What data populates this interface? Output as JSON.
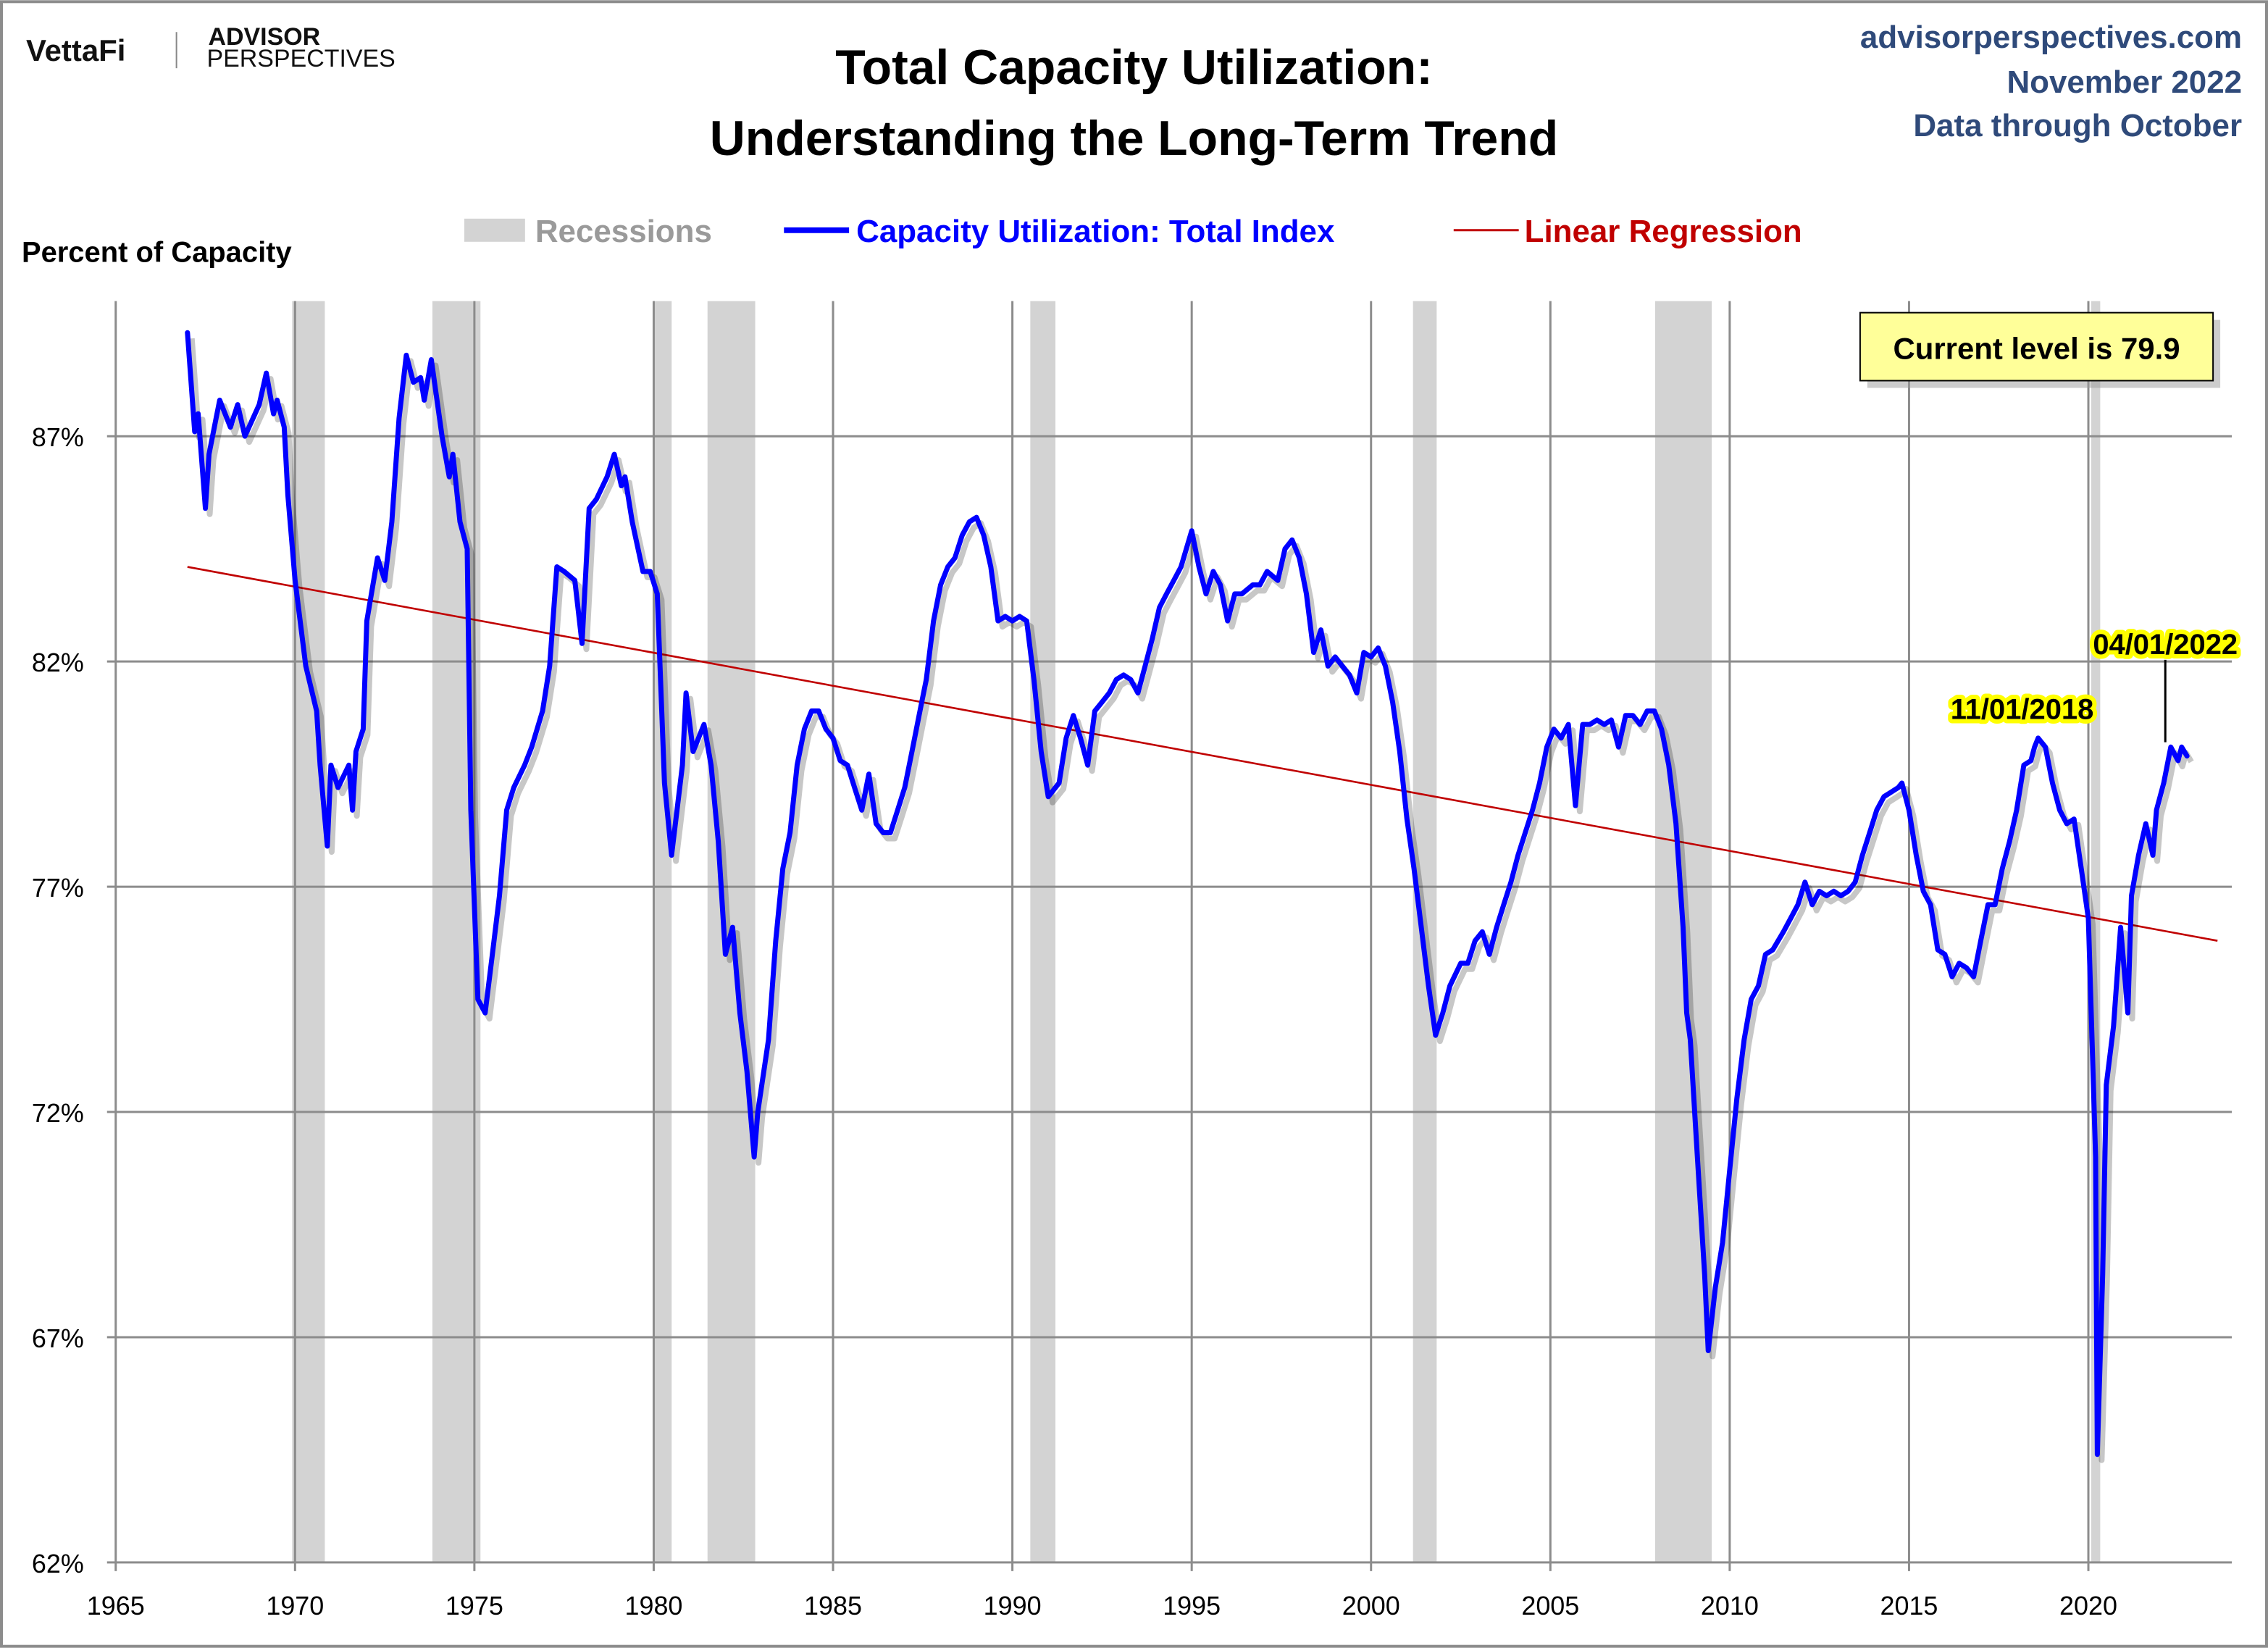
{
  "header": {
    "logo_left": "VettaFi",
    "logo_right_line1": "ADVISOR",
    "logo_right_line2": "PERSPECTIVES",
    "title_line1": "Total Capacity Utilization:",
    "title_line2": "Understanding  the Long-Term Trend",
    "source": "advisorperspectives.com",
    "date": "November 2022",
    "data_through": "Data through October"
  },
  "colors": {
    "series": "#0000ff",
    "regression": "#c00000",
    "recession": "#d3d3d3",
    "header_text": "#2f4a7a",
    "callout_bg": "#ffff99",
    "label_highlight": "#ffff00"
  },
  "chart_data": {
    "type": "line",
    "ylabel": "Percent of Capacity",
    "xlim": [
      1965,
      2024
    ],
    "ylim": [
      62,
      90
    ],
    "x_ticks": [
      "1965",
      "1970",
      "1975",
      "1980",
      "1985",
      "1990",
      "1995",
      "2000",
      "2005",
      "2010",
      "2015",
      "2020"
    ],
    "y_ticks": [
      "62%",
      "67%",
      "72%",
      "77%",
      "82%",
      "87%"
    ],
    "y_tick_values": [
      62,
      67,
      72,
      77,
      82,
      87
    ],
    "grid": true,
    "legend": {
      "position": "top",
      "items": [
        {
          "label": "Recessions",
          "kind": "band"
        },
        {
          "label": "Capacity Utilization: Total Index",
          "kind": "series"
        },
        {
          "label": "Linear Regression",
          "kind": "regression"
        }
      ]
    },
    "recessions": [
      [
        1969.92,
        1970.83
      ],
      [
        1973.83,
        1975.17
      ],
      [
        1980.0,
        1980.5
      ],
      [
        1981.5,
        1982.83
      ],
      [
        1990.5,
        1991.2
      ],
      [
        2001.17,
        2001.83
      ],
      [
        2007.92,
        2009.5
      ],
      [
        2020.08,
        2020.33
      ]
    ],
    "series": [
      {
        "name": "Capacity Utilization: Total Index",
        "points": [
          [
            1967.0,
            89.3
          ],
          [
            1967.2,
            87.1
          ],
          [
            1967.3,
            87.5
          ],
          [
            1967.5,
            85.4
          ],
          [
            1967.6,
            86.6
          ],
          [
            1967.8,
            87.4
          ],
          [
            1967.9,
            87.8
          ],
          [
            1968.2,
            87.2
          ],
          [
            1968.4,
            87.7
          ],
          [
            1968.6,
            87.0
          ],
          [
            1969.0,
            87.7
          ],
          [
            1969.2,
            88.4
          ],
          [
            1969.4,
            87.5
          ],
          [
            1969.5,
            87.8
          ],
          [
            1969.7,
            87.2
          ],
          [
            1969.8,
            85.7
          ],
          [
            1970.0,
            83.8
          ],
          [
            1970.3,
            81.9
          ],
          [
            1970.6,
            80.9
          ],
          [
            1970.7,
            79.7
          ],
          [
            1970.9,
            77.9
          ],
          [
            1971.0,
            79.7
          ],
          [
            1971.2,
            79.2
          ],
          [
            1971.5,
            79.7
          ],
          [
            1971.6,
            78.7
          ],
          [
            1971.7,
            80.0
          ],
          [
            1971.9,
            80.5
          ],
          [
            1972.0,
            82.9
          ],
          [
            1972.3,
            84.3
          ],
          [
            1972.5,
            83.8
          ],
          [
            1972.7,
            85.1
          ],
          [
            1972.9,
            87.4
          ],
          [
            1973.1,
            88.8
          ],
          [
            1973.3,
            88.2
          ],
          [
            1973.5,
            88.3
          ],
          [
            1973.6,
            87.8
          ],
          [
            1973.8,
            88.7
          ],
          [
            1974.1,
            87.0
          ],
          [
            1974.3,
            86.1
          ],
          [
            1974.4,
            86.6
          ],
          [
            1974.6,
            85.1
          ],
          [
            1974.8,
            84.5
          ],
          [
            1974.9,
            78.7
          ],
          [
            1975.1,
            74.5
          ],
          [
            1975.3,
            74.2
          ],
          [
            1975.5,
            75.5
          ],
          [
            1975.7,
            76.8
          ],
          [
            1975.9,
            78.7
          ],
          [
            1976.1,
            79.2
          ],
          [
            1976.4,
            79.7
          ],
          [
            1976.6,
            80.1
          ],
          [
            1976.9,
            80.9
          ],
          [
            1977.1,
            81.9
          ],
          [
            1977.3,
            84.1
          ],
          [
            1977.5,
            84.0
          ],
          [
            1977.8,
            83.8
          ],
          [
            1978.0,
            82.4
          ],
          [
            1978.2,
            85.4
          ],
          [
            1978.4,
            85.6
          ],
          [
            1978.7,
            86.1
          ],
          [
            1978.9,
            86.6
          ],
          [
            1979.1,
            85.9
          ],
          [
            1979.2,
            86.1
          ],
          [
            1979.4,
            85.1
          ],
          [
            1979.7,
            84.0
          ],
          [
            1979.9,
            84.0
          ],
          [
            1980.1,
            83.5
          ],
          [
            1980.3,
            79.3
          ],
          [
            1980.5,
            77.7
          ],
          [
            1980.8,
            79.7
          ],
          [
            1980.9,
            81.3
          ],
          [
            1981.1,
            80.0
          ],
          [
            1981.4,
            80.6
          ],
          [
            1981.6,
            79.7
          ],
          [
            1981.8,
            78.0
          ],
          [
            1982.0,
            75.5
          ],
          [
            1982.2,
            76.1
          ],
          [
            1982.4,
            74.2
          ],
          [
            1982.6,
            72.9
          ],
          [
            1982.8,
            71.0
          ],
          [
            1982.9,
            72.0
          ],
          [
            1983.2,
            73.6
          ],
          [
            1983.4,
            75.8
          ],
          [
            1983.6,
            77.4
          ],
          [
            1983.8,
            78.2
          ],
          [
            1984.0,
            79.7
          ],
          [
            1984.2,
            80.5
          ],
          [
            1984.4,
            80.9
          ],
          [
            1984.6,
            80.9
          ],
          [
            1984.8,
            80.5
          ],
          [
            1985.0,
            80.3
          ],
          [
            1985.2,
            79.8
          ],
          [
            1985.4,
            79.7
          ],
          [
            1985.6,
            79.2
          ],
          [
            1985.8,
            78.7
          ],
          [
            1986.0,
            79.5
          ],
          [
            1986.2,
            78.4
          ],
          [
            1986.4,
            78.2
          ],
          [
            1986.6,
            78.2
          ],
          [
            1986.8,
            78.7
          ],
          [
            1987.0,
            79.2
          ],
          [
            1987.2,
            80.0
          ],
          [
            1987.4,
            80.8
          ],
          [
            1987.6,
            81.6
          ],
          [
            1987.8,
            82.9
          ],
          [
            1988.0,
            83.7
          ],
          [
            1988.2,
            84.1
          ],
          [
            1988.4,
            84.3
          ],
          [
            1988.6,
            84.8
          ],
          [
            1988.8,
            85.1
          ],
          [
            1989.0,
            85.2
          ],
          [
            1989.2,
            84.8
          ],
          [
            1989.4,
            84.1
          ],
          [
            1989.6,
            82.9
          ],
          [
            1989.8,
            83.0
          ],
          [
            1990.0,
            82.9
          ],
          [
            1990.2,
            83.0
          ],
          [
            1990.4,
            82.9
          ],
          [
            1990.6,
            81.6
          ],
          [
            1990.8,
            80.0
          ],
          [
            1991.0,
            79.0
          ],
          [
            1991.3,
            79.3
          ],
          [
            1991.5,
            80.3
          ],
          [
            1991.7,
            80.8
          ],
          [
            1991.9,
            80.3
          ],
          [
            1992.1,
            79.7
          ],
          [
            1992.3,
            80.9
          ],
          [
            1992.5,
            81.1
          ],
          [
            1992.7,
            81.3
          ],
          [
            1992.9,
            81.6
          ],
          [
            1993.1,
            81.7
          ],
          [
            1993.3,
            81.6
          ],
          [
            1993.5,
            81.3
          ],
          [
            1993.7,
            81.9
          ],
          [
            1993.9,
            82.5
          ],
          [
            1994.1,
            83.2
          ],
          [
            1994.3,
            83.5
          ],
          [
            1994.5,
            83.8
          ],
          [
            1994.7,
            84.1
          ],
          [
            1995.0,
            84.9
          ],
          [
            1995.2,
            84.1
          ],
          [
            1995.4,
            83.5
          ],
          [
            1995.6,
            84.0
          ],
          [
            1995.8,
            83.7
          ],
          [
            1996.0,
            82.9
          ],
          [
            1996.2,
            83.5
          ],
          [
            1996.4,
            83.5
          ],
          [
            1996.7,
            83.7
          ],
          [
            1996.9,
            83.7
          ],
          [
            1997.1,
            84.0
          ],
          [
            1997.4,
            83.8
          ],
          [
            1997.6,
            84.5
          ],
          [
            1997.8,
            84.7
          ],
          [
            1998.0,
            84.3
          ],
          [
            1998.2,
            83.5
          ],
          [
            1998.4,
            82.2
          ],
          [
            1998.6,
            82.7
          ],
          [
            1998.8,
            81.9
          ],
          [
            1999.0,
            82.1
          ],
          [
            1999.2,
            81.9
          ],
          [
            1999.4,
            81.7
          ],
          [
            1999.6,
            81.3
          ],
          [
            1999.8,
            82.2
          ],
          [
            2000.0,
            82.1
          ],
          [
            2000.2,
            82.3
          ],
          [
            2000.4,
            81.9
          ],
          [
            2000.6,
            81.1
          ],
          [
            2000.8,
            80.0
          ],
          [
            2001.0,
            78.5
          ],
          [
            2001.2,
            77.4
          ],
          [
            2001.4,
            76.1
          ],
          [
            2001.6,
            74.8
          ],
          [
            2001.8,
            73.7
          ],
          [
            2002.0,
            74.2
          ],
          [
            2002.2,
            74.8
          ],
          [
            2002.5,
            75.3
          ],
          [
            2002.7,
            75.3
          ],
          [
            2002.9,
            75.8
          ],
          [
            2003.1,
            76.0
          ],
          [
            2003.3,
            75.5
          ],
          [
            2003.5,
            76.1
          ],
          [
            2003.7,
            76.6
          ],
          [
            2003.9,
            77.1
          ],
          [
            2004.1,
            77.7
          ],
          [
            2004.3,
            78.2
          ],
          [
            2004.5,
            78.7
          ],
          [
            2004.7,
            79.3
          ],
          [
            2004.9,
            80.1
          ],
          [
            2005.1,
            80.5
          ],
          [
            2005.3,
            80.3
          ],
          [
            2005.5,
            80.6
          ],
          [
            2005.7,
            78.8
          ],
          [
            2005.9,
            80.6
          ],
          [
            2006.1,
            80.6
          ],
          [
            2006.3,
            80.7
          ],
          [
            2006.5,
            80.6
          ],
          [
            2006.7,
            80.7
          ],
          [
            2006.9,
            80.1
          ],
          [
            2007.1,
            80.8
          ],
          [
            2007.3,
            80.8
          ],
          [
            2007.5,
            80.6
          ],
          [
            2007.7,
            80.9
          ],
          [
            2007.9,
            80.9
          ],
          [
            2008.1,
            80.5
          ],
          [
            2008.3,
            79.7
          ],
          [
            2008.5,
            78.4
          ],
          [
            2008.7,
            76.1
          ],
          [
            2008.8,
            74.2
          ],
          [
            2008.9,
            73.6
          ],
          [
            2009.1,
            71.0
          ],
          [
            2009.3,
            68.4
          ],
          [
            2009.4,
            66.7
          ],
          [
            2009.6,
            68.1
          ],
          [
            2009.8,
            69.1
          ],
          [
            2010.0,
            70.7
          ],
          [
            2010.2,
            72.3
          ],
          [
            2010.4,
            73.6
          ],
          [
            2010.6,
            74.5
          ],
          [
            2010.8,
            74.8
          ],
          [
            2011.0,
            75.5
          ],
          [
            2011.2,
            75.6
          ],
          [
            2011.5,
            76.0
          ],
          [
            2011.7,
            76.3
          ],
          [
            2011.9,
            76.6
          ],
          [
            2012.1,
            77.1
          ],
          [
            2012.3,
            76.6
          ],
          [
            2012.5,
            76.9
          ],
          [
            2012.7,
            76.8
          ],
          [
            2012.9,
            76.9
          ],
          [
            2013.1,
            76.8
          ],
          [
            2013.3,
            76.9
          ],
          [
            2013.5,
            77.1
          ],
          [
            2013.7,
            77.7
          ],
          [
            2013.9,
            78.2
          ],
          [
            2014.1,
            78.7
          ],
          [
            2014.3,
            79.0
          ],
          [
            2014.5,
            79.1
          ],
          [
            2014.7,
            79.2
          ],
          [
            2014.8,
            79.3
          ],
          [
            2015.0,
            78.7
          ],
          [
            2015.2,
            77.7
          ],
          [
            2015.4,
            76.9
          ],
          [
            2015.6,
            76.6
          ],
          [
            2015.8,
            75.6
          ],
          [
            2016.0,
            75.5
          ],
          [
            2016.2,
            75.0
          ],
          [
            2016.4,
            75.3
          ],
          [
            2016.6,
            75.2
          ],
          [
            2016.8,
            75.0
          ],
          [
            2017.0,
            75.8
          ],
          [
            2017.2,
            76.6
          ],
          [
            2017.4,
            76.6
          ],
          [
            2017.6,
            77.4
          ],
          [
            2017.8,
            78.0
          ],
          [
            2018.0,
            78.7
          ],
          [
            2018.2,
            79.7
          ],
          [
            2018.4,
            79.8
          ],
          [
            2018.5,
            80.1
          ],
          [
            2018.6,
            80.3
          ],
          [
            2018.8,
            80.1
          ],
          [
            2019.0,
            79.3
          ],
          [
            2019.2,
            78.7
          ],
          [
            2019.4,
            78.4
          ],
          [
            2019.6,
            78.5
          ],
          [
            2019.8,
            77.4
          ],
          [
            2020.0,
            76.3
          ],
          [
            2020.2,
            71.0
          ],
          [
            2020.25,
            64.4
          ],
          [
            2020.4,
            68.4
          ],
          [
            2020.5,
            72.6
          ],
          [
            2020.7,
            73.9
          ],
          [
            2020.9,
            76.1
          ],
          [
            2021.1,
            74.2
          ],
          [
            2021.2,
            76.8
          ],
          [
            2021.4,
            77.7
          ],
          [
            2021.6,
            78.4
          ],
          [
            2021.8,
            77.7
          ],
          [
            2021.9,
            78.7
          ],
          [
            2022.1,
            79.3
          ],
          [
            2022.3,
            80.1
          ],
          [
            2022.5,
            79.8
          ],
          [
            2022.6,
            80.1
          ],
          [
            2022.75,
            79.9
          ]
        ]
      }
    ],
    "regression": {
      "name": "Linear Regression",
      "start": [
        1967.0,
        84.1
      ],
      "end": [
        2023.6,
        75.8
      ]
    },
    "annotations": [
      {
        "label": "11/01/2018",
        "x": 2018.8,
        "y": 80.3
      },
      {
        "label": "04/01/2022",
        "x": 2022.25,
        "y": 80.1
      }
    ],
    "callout": "Current level is 79.9"
  }
}
